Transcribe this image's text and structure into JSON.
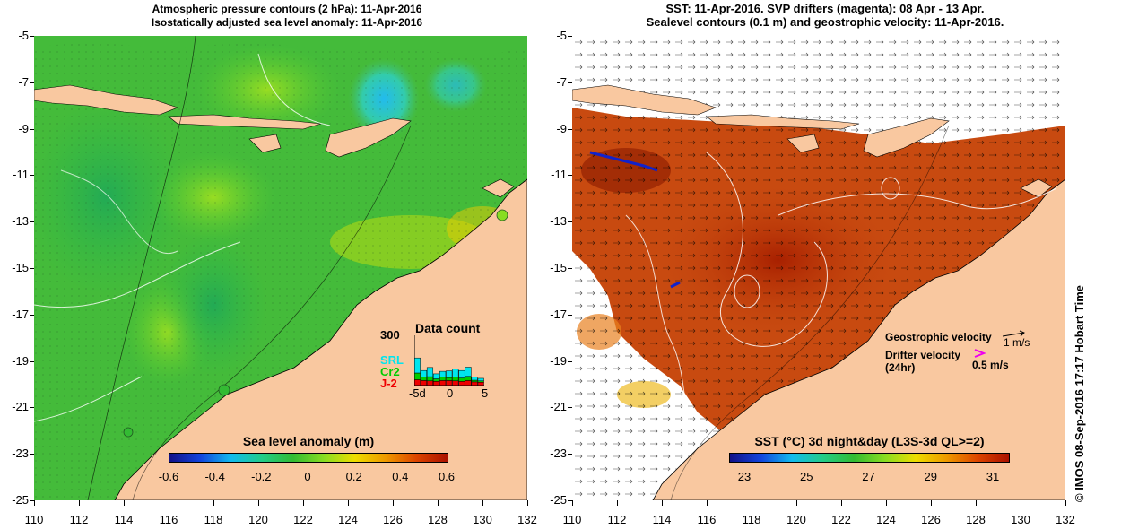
{
  "left_panel": {
    "title_line1": "Atmospheric pressure contours (2 hPa): 11-Apr-2016",
    "title_line2": "Isostatically adjusted sea level anomaly: 11-Apr-2016",
    "colorbar": {
      "title": "Sea level anomaly (m)",
      "ticks": [
        "-0.6",
        "-0.4",
        "-0.2",
        "0",
        "0.2",
        "0.4",
        "0.6"
      ]
    },
    "data_count": {
      "title": "Data count",
      "ymax_label": "300",
      "series": [
        {
          "name": "SRL",
          "color": "#00e5ee",
          "values": [
            90,
            40,
            55,
            30,
            35,
            40,
            50,
            45,
            55,
            20,
            15
          ]
        },
        {
          "name": "Cr2",
          "color": "#00cc00",
          "values": [
            40,
            20,
            25,
            15,
            20,
            18,
            22,
            20,
            25,
            10,
            8
          ]
        },
        {
          "name": "J-2",
          "color": "#ee0000",
          "values": [
            35,
            30,
            28,
            25,
            30,
            30,
            28,
            25,
            30,
            22,
            20
          ]
        }
      ],
      "x_ticks": [
        "-5d",
        "0",
        "5"
      ]
    }
  },
  "right_panel": {
    "title_line1": "SST: 11-Apr-2016. SVP drifters (magenta): 08 Apr - 13 Apr.",
    "title_line2": "Sealevel contours (0.1 m) and geostrophic velocity: 11-Apr-2016.",
    "colorbar": {
      "title": "SST (°C) 3d night&day (L3S-3d QL>=2)",
      "ticks": [
        "23",
        "25",
        "27",
        "29",
        "31"
      ]
    },
    "geostrophic_label": "Geostrophic velocity",
    "geostrophic_scale": "1 m/s",
    "drifter_label_line1": "Drifter velocity",
    "drifter_label_line2": "(24hr)",
    "drifter_scale": "0.5 m/s"
  },
  "axes": {
    "x_ticks": [
      "110",
      "112",
      "114",
      "116",
      "118",
      "120",
      "122",
      "124",
      "126",
      "128",
      "130",
      "132"
    ],
    "y_ticks": [
      "-5",
      "-7",
      "-9",
      "-11",
      "-13",
      "-15",
      "-17",
      "-19",
      "-21",
      "-23",
      "-25"
    ]
  },
  "side_text": "© IMOS 08-Sep-2016 17:17 Hobart Time",
  "colors": {
    "land": "#f9c8a0",
    "ssl_green": "#33bb33",
    "sst_warm": "#c84a10",
    "sst_hot": "#a82000"
  }
}
